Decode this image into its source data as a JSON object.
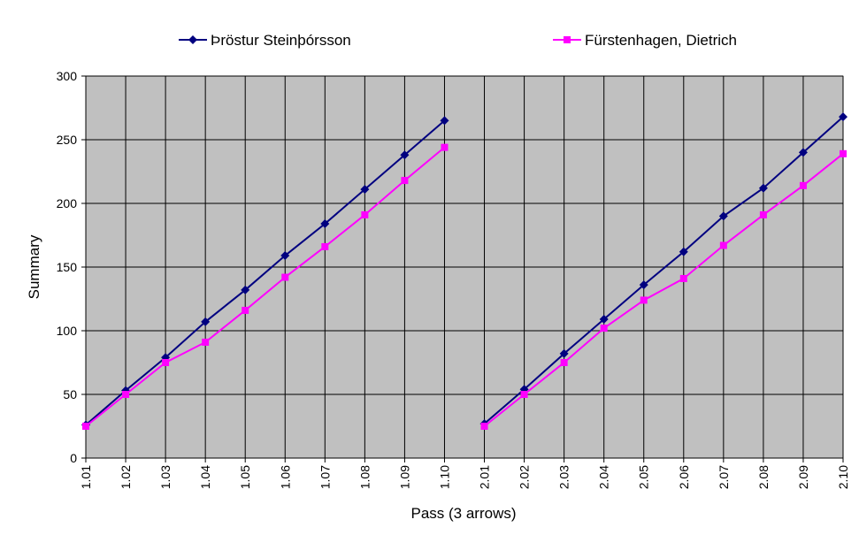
{
  "chart_data": {
    "type": "line",
    "categories": [
      "1.01",
      "1.02",
      "1.03",
      "1.04",
      "1.05",
      "1.06",
      "1.07",
      "1.08",
      "1.09",
      "1.10",
      "2.01",
      "2.02",
      "2.03",
      "2.04",
      "2.05",
      "2.06",
      "2.07",
      "2.08",
      "2.09",
      "2.10"
    ],
    "series": [
      {
        "name": "Þröstur Steinþórsson",
        "color": "#000080",
        "marker": "diamond",
        "values": [
          26,
          53,
          79,
          107,
          132,
          159,
          184,
          211,
          238,
          265,
          27,
          54,
          82,
          109,
          136,
          162,
          190,
          212,
          240,
          268
        ]
      },
      {
        "name": "Fürstenhagen, Dietrich",
        "color": "#FF00FF",
        "marker": "square",
        "values": [
          25,
          50,
          75,
          91,
          116,
          142,
          166,
          191,
          218,
          244,
          25,
          50,
          75,
          102,
          124,
          141,
          167,
          191,
          214,
          239
        ]
      }
    ],
    "segment_breaks": [
      10
    ],
    "title": "",
    "xlabel": "Pass (3 arrows)",
    "ylabel": "Summary",
    "ylim": [
      0,
      300
    ],
    "yticks": [
      0,
      50,
      100,
      150,
      200,
      250,
      300
    ],
    "grid": true,
    "legend_position": "top",
    "plot_background": "#C0C0C0"
  }
}
